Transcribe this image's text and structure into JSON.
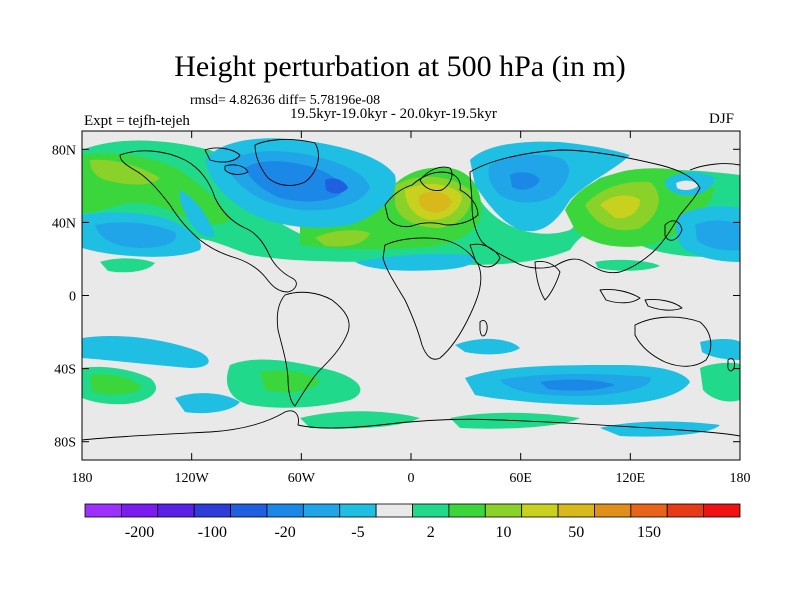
{
  "title": "Height perturbation at 500 hPa (in m)",
  "stats": "rmsd= 4.82636 diff= 5.78196e-08",
  "period": "19.5kyr-19.0kyr - 20.0kyr-19.5kyr",
  "experiment": "Expt = tejfh-tejeh",
  "season": "DJF",
  "axes": {
    "lat_labels": [
      "80N",
      "40N",
      "0",
      "40S",
      "80S"
    ],
    "lat_values": [
      80,
      40,
      0,
      -40,
      -80
    ],
    "lon_labels": [
      "180",
      "120W",
      "60W",
      "0",
      "60E",
      "120E",
      "180"
    ],
    "lon_values": [
      -180,
      -120,
      -60,
      0,
      60,
      120,
      180
    ]
  },
  "colorbar": {
    "labels": [
      "-200",
      "-100",
      "-20",
      "-5",
      "2",
      "10",
      "50",
      "150"
    ],
    "colors": [
      "#9b30ff",
      "#7a1cf0",
      "#5a22e6",
      "#2e3dd9",
      "#1f5fe0",
      "#1b87e6",
      "#1fa5e8",
      "#1fbfe3",
      "#e9e9e9",
      "#21d98a",
      "#3bd63b",
      "#8ad12a",
      "#c8d21e",
      "#d9b81c",
      "#e0901a",
      "#e86418",
      "#e83a15",
      "#f01212"
    ]
  },
  "map": {
    "projection": "cylindrical equidistant",
    "land_contour_color": "#000000",
    "neutral_color": "#e9e9e9"
  }
}
